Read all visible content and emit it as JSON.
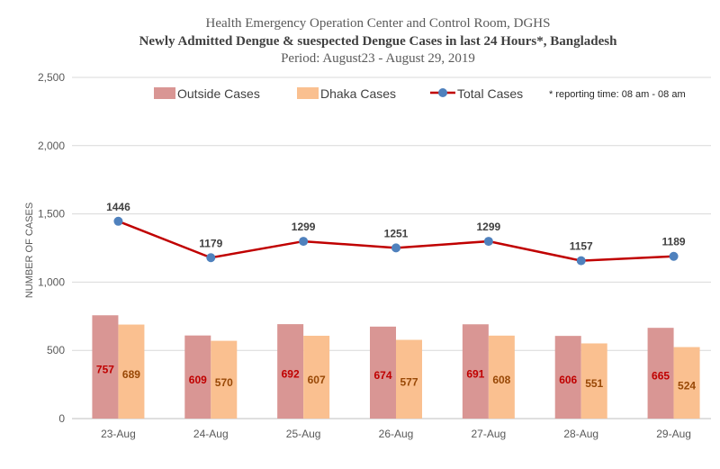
{
  "chart_data": {
    "type": "bar",
    "title_line1": "Health Emergency Operation Center and Control Room, DGHS",
    "title_line2": "Newly Admitted Dengue & suespected Dengue Cases in last 24 Hours*, Bangladesh",
    "title_line3": "Period: August23 - August 29, 2019",
    "ylabel": "NUMBER OF CASES",
    "ylim": [
      0,
      2500
    ],
    "yticks": [
      "0",
      "500",
      "1,000",
      "1,500",
      "2,000",
      "2,500"
    ],
    "ytick_values": [
      0,
      500,
      1000,
      1500,
      2000,
      2500
    ],
    "categories": [
      "23-Aug",
      "24-Aug",
      "25-Aug",
      "26-Aug",
      "27-Aug",
      "28-Aug",
      "29-Aug"
    ],
    "series": [
      {
        "name": "Outside Cases",
        "kind": "bar",
        "color": "#d99694",
        "label_color": "#c00000",
        "values": [
          757,
          609,
          692,
          674,
          691,
          606,
          665
        ]
      },
      {
        "name": "Dhaka Cases",
        "kind": "bar",
        "color": "#fac090",
        "label_color": "#984806",
        "values": [
          689,
          570,
          607,
          577,
          608,
          551,
          524
        ]
      },
      {
        "name": "Total Cases",
        "kind": "line",
        "color": "#c00000",
        "marker_color": "#4f81bd",
        "values": [
          1446,
          1179,
          1299,
          1251,
          1299,
          1157,
          1189
        ]
      }
    ],
    "note": "* reporting time: 08 am - 08 am",
    "grid": true,
    "legend": "top"
  }
}
